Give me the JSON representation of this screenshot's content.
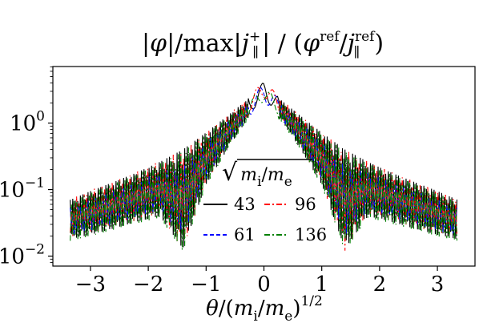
{
  "chart_data": {
    "type": "line",
    "title": "|φ|/max|j∥+| / (φref/j∥ref)",
    "xlabel": "θ/(mi/me)1/2",
    "ylabel": "",
    "xlim": [
      -3.65,
      3.65
    ],
    "ylim_log10": [
      -2.15,
      0.85
    ],
    "yscale": "log",
    "grid": false,
    "x_ticks": [
      -3,
      -2,
      -1,
      0,
      1,
      2,
      3
    ],
    "x_tick_labels": [
      "−3",
      "−2",
      "−1",
      "0",
      "1",
      "2",
      "3"
    ],
    "y_ticks_log10": [
      -2,
      -1,
      0
    ],
    "y_tick_base": "10",
    "y_tick_exponents": [
      "−2",
      "−1",
      "0"
    ],
    "legend": {
      "title": "√mi/me",
      "placement": "center",
      "columns": 2
    },
    "series": [
      {
        "name": "43",
        "color": "#000000",
        "dash": "solid",
        "envelope": {
          "x": [
            0,
            0.3,
            0.6,
            1.0,
            1.4,
            1.8,
            2.2,
            2.6,
            3.0,
            3.35
          ],
          "upper": [
            4.2,
            2.2,
            1.35,
            0.72,
            0.4,
            0.26,
            0.18,
            0.13,
            0.095,
            0.07
          ],
          "lower": [
            2.0,
            1.1,
            0.45,
            0.12,
            0.013,
            0.04,
            0.033,
            0.026,
            0.021,
            0.018
          ]
        }
      },
      {
        "name": "61",
        "color": "#0000ff",
        "dash": "dashed",
        "envelope": {
          "x": [
            0,
            0.3,
            0.6,
            1.0,
            1.4,
            1.8,
            2.2,
            2.6,
            3.0,
            3.35
          ],
          "upper": [
            4.0,
            2.1,
            1.3,
            0.7,
            0.38,
            0.25,
            0.17,
            0.125,
            0.09,
            0.066
          ],
          "lower": [
            1.8,
            1.0,
            0.42,
            0.11,
            0.012,
            0.036,
            0.03,
            0.024,
            0.019,
            0.016
          ]
        }
      },
      {
        "name": "96",
        "color": "#ff0000",
        "dash": "dashdot",
        "envelope": {
          "x": [
            0,
            0.3,
            0.6,
            1.0,
            1.4,
            1.8,
            2.2,
            2.6,
            3.0,
            3.35
          ],
          "upper": [
            4.4,
            2.3,
            1.4,
            0.74,
            0.41,
            0.27,
            0.19,
            0.135,
            0.1,
            0.072
          ],
          "lower": [
            2.1,
            1.15,
            0.47,
            0.125,
            0.011,
            0.042,
            0.034,
            0.027,
            0.022,
            0.019
          ]
        }
      },
      {
        "name": "136",
        "color": "#008000",
        "dash": "dashdot",
        "envelope": {
          "x": [
            0,
            0.3,
            0.6,
            1.0,
            1.4,
            1.8,
            2.2,
            2.6,
            3.0,
            3.35
          ],
          "upper": [
            3.6,
            2.0,
            1.25,
            0.68,
            0.37,
            0.245,
            0.168,
            0.122,
            0.088,
            0.064
          ],
          "lower": [
            1.9,
            1.05,
            0.44,
            0.115,
            0.012,
            0.038,
            0.031,
            0.025,
            0.02,
            0.017
          ]
        }
      }
    ]
  }
}
